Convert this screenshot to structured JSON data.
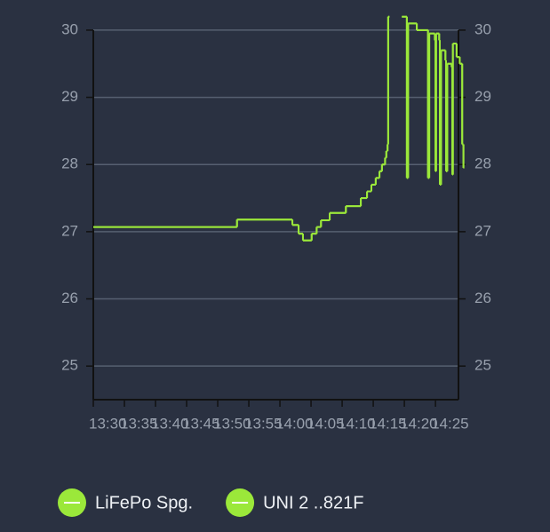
{
  "chart_data": {
    "type": "line",
    "step": true,
    "xlim": [
      810,
      868.7
    ],
    "xticks": [
      {
        "value": 810,
        "label": "13:30"
      },
      {
        "value": 815,
        "label": "13:35"
      },
      {
        "value": 820,
        "label": "13:40"
      },
      {
        "value": 825,
        "label": "13:45"
      },
      {
        "value": 830,
        "label": "13:50"
      },
      {
        "value": 835,
        "label": "13:55"
      },
      {
        "value": 840,
        "label": "14:00"
      },
      {
        "value": 845,
        "label": "14:05"
      },
      {
        "value": 850,
        "label": "14:10"
      },
      {
        "value": 855,
        "label": "14:15"
      },
      {
        "value": 860,
        "label": "14:20"
      },
      {
        "value": 865,
        "label": "14:25"
      }
    ],
    "ylim": [
      24.5,
      30.2
    ],
    "yticks": [
      25,
      26,
      27,
      28,
      29,
      30
    ],
    "y2lim": [
      24.5,
      30.2
    ],
    "y2ticks": [
      25,
      26,
      27,
      28,
      29,
      30
    ],
    "grid": true,
    "legend": "bottom",
    "x": [
      810,
      833.1,
      842,
      843,
      843.7,
      845.1,
      845.9,
      846.6,
      848,
      850.6,
      853,
      854,
      854.7,
      855.4,
      856,
      856.4,
      856.9,
      857.1,
      857.3,
      857.4,
      857.6,
      859.6,
      860.3,
      860.4,
      860.6,
      861.9,
      862,
      863.7,
      863.8,
      864,
      864.9,
      865,
      865.1,
      865.6,
      865.7,
      865.9,
      866.6,
      866.7,
      866.9,
      867.6,
      867.7,
      867.8,
      868.4,
      868.9,
      869.3,
      869.5,
      869.6
    ],
    "series": [
      {
        "name": "LiFePo Spg.",
        "color": "#9be83a",
        "values": [
          27.07,
          27.18,
          27.1,
          26.97,
          26.87,
          26.97,
          27.07,
          27.17,
          27.28,
          27.38,
          27.5,
          27.6,
          27.7,
          27.8,
          27.9,
          28.0,
          28.1,
          28.2,
          28.3,
          30.2,
          null,
          30.2,
          30.2,
          27.8,
          30.1,
          30.1,
          30.0,
          30.0,
          27.8,
          29.95,
          29.85,
          27.9,
          29.95,
          29.85,
          27.7,
          29.7,
          29.55,
          27.9,
          29.5,
          29.45,
          27.85,
          29.8,
          29.6,
          29.5,
          28.3,
          27.95,
          27.95
        ]
      },
      {
        "name": "UNI 2 ..821F",
        "color": "#9be83a",
        "values": [
          27.07,
          27.18,
          27.1,
          26.97,
          26.87,
          26.97,
          27.07,
          27.17,
          27.28,
          27.38,
          27.5,
          27.6,
          27.7,
          27.8,
          27.9,
          28.0,
          28.1,
          28.2,
          28.3,
          30.2,
          null,
          30.2,
          30.2,
          27.8,
          30.1,
          30.1,
          30.0,
          30.0,
          27.8,
          29.95,
          29.85,
          27.9,
          29.95,
          29.85,
          27.7,
          29.7,
          29.55,
          27.9,
          29.5,
          29.45,
          27.85,
          29.8,
          29.6,
          29.5,
          28.3,
          27.95,
          27.95
        ]
      }
    ]
  }
}
